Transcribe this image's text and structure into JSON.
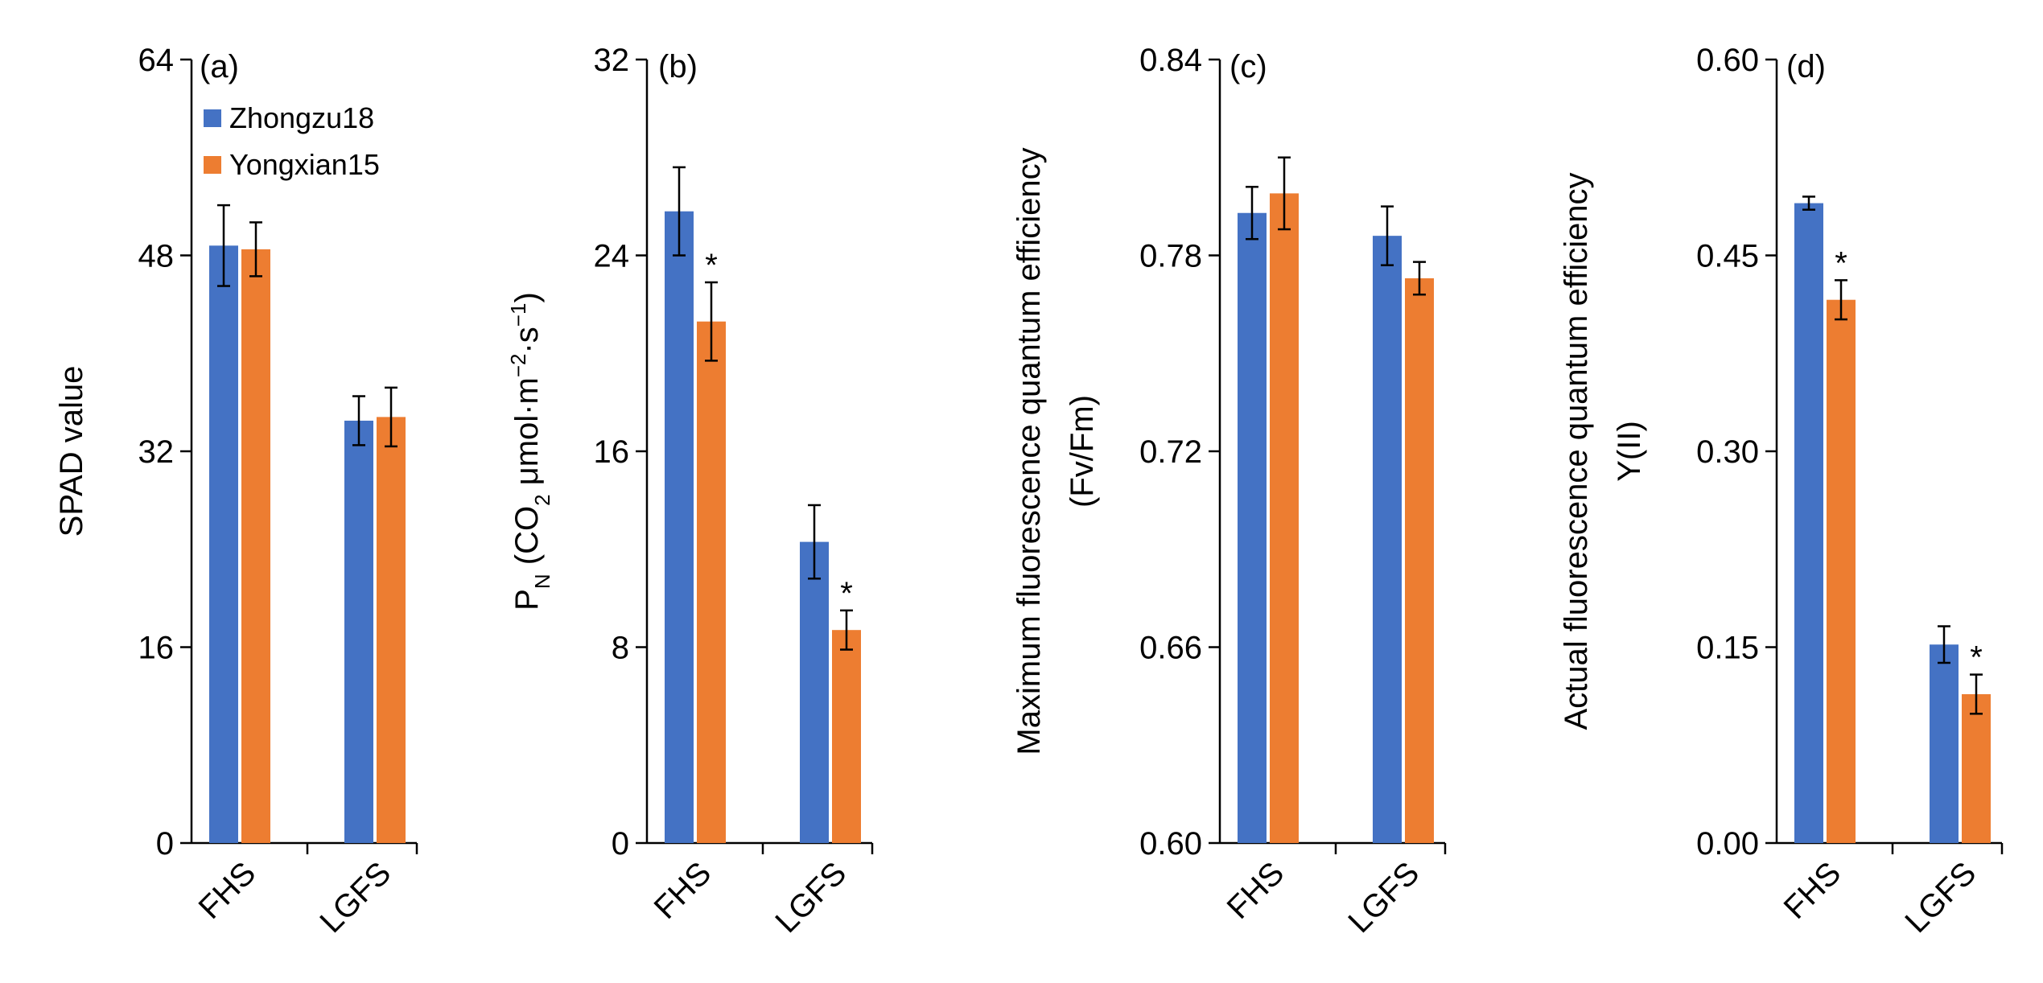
{
  "colors": {
    "Zhongzu18": "#4472C4",
    "Yongxian15": "#ED7D31",
    "axis": "#000000"
  },
  "legend": {
    "position": "top-left of panel (a)",
    "items": [
      {
        "name": "Zhongzu18",
        "color": "#4472C4"
      },
      {
        "name": "Yongxian15",
        "color": "#ED7D31"
      }
    ]
  },
  "chart_data": [
    {
      "panel": "(a)",
      "type": "bar",
      "ylabel": "SPAD value",
      "ylabel_lines": [
        "SPAD value"
      ],
      "ylim": [
        0,
        64
      ],
      "yticks": [
        "0",
        "16",
        "32",
        "48",
        "64"
      ],
      "categories": [
        "FHS",
        "LGFS"
      ],
      "series": [
        {
          "name": "Zhongzu18",
          "values": [
            48.8,
            34.5
          ],
          "errors": [
            3.3,
            2.0
          ],
          "sig": [
            "",
            ""
          ]
        },
        {
          "name": "Yongxian15",
          "values": [
            48.5,
            34.8
          ],
          "errors": [
            2.2,
            2.4
          ],
          "sig": [
            "",
            ""
          ]
        }
      ]
    },
    {
      "panel": "(b)",
      "type": "bar",
      "ylabel_lines": [
        "P_N (CO_2 μmol·m^-2·s^-1)"
      ],
      "ylim": [
        0,
        32
      ],
      "yticks": [
        "0",
        "8",
        "16",
        "24",
        "32"
      ],
      "categories": [
        "FHS",
        "LGFS"
      ],
      "series": [
        {
          "name": "Zhongzu18",
          "values": [
            25.8,
            12.3
          ],
          "errors": [
            1.8,
            1.5
          ],
          "sig": [
            "",
            ""
          ]
        },
        {
          "name": "Yongxian15",
          "values": [
            21.3,
            8.7
          ],
          "errors": [
            1.6,
            0.8
          ],
          "sig": [
            "*",
            "*"
          ]
        }
      ]
    },
    {
      "panel": "(c)",
      "type": "bar",
      "ylabel_lines": [
        "Maximum fluorescence quantum efficiency",
        "(Fv/Fm)"
      ],
      "ylim": [
        0.6,
        0.84
      ],
      "yticks": [
        "0.60",
        "0.66",
        "0.72",
        "0.78",
        "0.84"
      ],
      "categories": [
        "FHS",
        "LGFS"
      ],
      "series": [
        {
          "name": "Zhongzu18",
          "values": [
            0.793,
            0.786
          ],
          "errors": [
            0.008,
            0.009
          ],
          "sig": [
            "",
            ""
          ]
        },
        {
          "name": "Yongxian15",
          "values": [
            0.799,
            0.773
          ],
          "errors": [
            0.011,
            0.005
          ],
          "sig": [
            "",
            ""
          ]
        }
      ]
    },
    {
      "panel": "(d)",
      "type": "bar",
      "ylabel_lines": [
        "Actual fluorescence quantum efficiency",
        "Y(II)"
      ],
      "ylim": [
        0,
        0.6
      ],
      "yticks": [
        "0.00",
        "0.15",
        "0.30",
        "0.45",
        "0.60"
      ],
      "categories": [
        "FHS",
        "LGFS"
      ],
      "series": [
        {
          "name": "Zhongzu18",
          "values": [
            0.49,
            0.152
          ],
          "errors": [
            0.005,
            0.014
          ],
          "sig": [
            "",
            ""
          ]
        },
        {
          "name": "Yongxian15",
          "values": [
            0.416,
            0.114
          ],
          "errors": [
            0.015,
            0.015
          ],
          "sig": [
            "*",
            "*"
          ]
        }
      ]
    }
  ]
}
